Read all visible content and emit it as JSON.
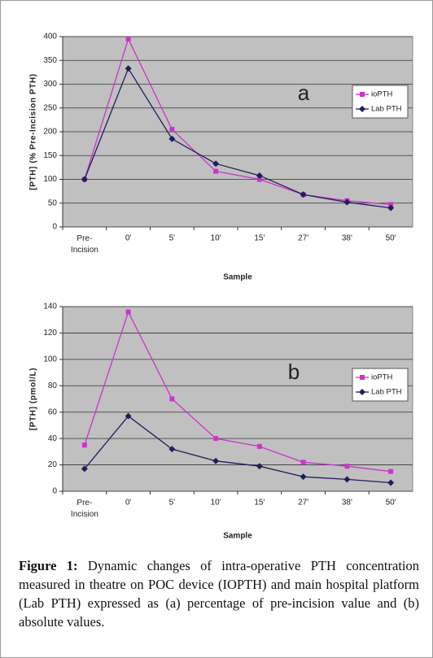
{
  "chart_data": [
    {
      "type": "line",
      "annotation": "a",
      "ylabel": "[PTH] (% Pre-Incision PTH)",
      "xlabel": "Sample",
      "categories": [
        "Pre-Incision",
        "0'",
        "5'",
        "10'",
        "15'",
        "27'",
        "38'",
        "50'"
      ],
      "series": [
        {
          "name": "ioPTH",
          "color": "#cc33cc",
          "marker": "square",
          "values": [
            100,
            395,
            205,
            117,
            100,
            68,
            55,
            47
          ]
        },
        {
          "name": "Lab PTH",
          "color": "#1f1f5a",
          "marker": "diamond",
          "values": [
            100,
            333,
            185,
            133,
            108,
            68,
            52,
            40
          ]
        }
      ],
      "ylim": [
        0,
        400
      ],
      "yticks": [
        0,
        50,
        100,
        150,
        200,
        250,
        300,
        350,
        400
      ],
      "grid": true
    },
    {
      "type": "line",
      "annotation": "b",
      "ylabel": "[PTH] (pmol/L)",
      "xlabel": "Sample",
      "categories": [
        "Pre-Incision",
        "0'",
        "5'",
        "10'",
        "15'",
        "27'",
        "38'",
        "50'"
      ],
      "series": [
        {
          "name": "ioPTH",
          "color": "#cc33cc",
          "marker": "square",
          "values": [
            35,
            136,
            70,
            40,
            34,
            22,
            19,
            15
          ]
        },
        {
          "name": "Lab PTH",
          "color": "#1f1f5a",
          "marker": "diamond",
          "values": [
            17,
            57,
            32,
            23,
            19,
            11,
            9,
            6.5
          ]
        }
      ],
      "ylim": [
        0,
        140
      ],
      "yticks": [
        0,
        20,
        40,
        60,
        80,
        100,
        120,
        140
      ],
      "grid": true
    }
  ],
  "caption": {
    "label": "Figure 1:",
    "text": "Dynamic changes of intra-operative PTH concentration measured in theatre on POC device (IOPTH) and main hospital platform (Lab PTH) expressed as (a) percentage of pre-incision value and (b) absolute values."
  }
}
